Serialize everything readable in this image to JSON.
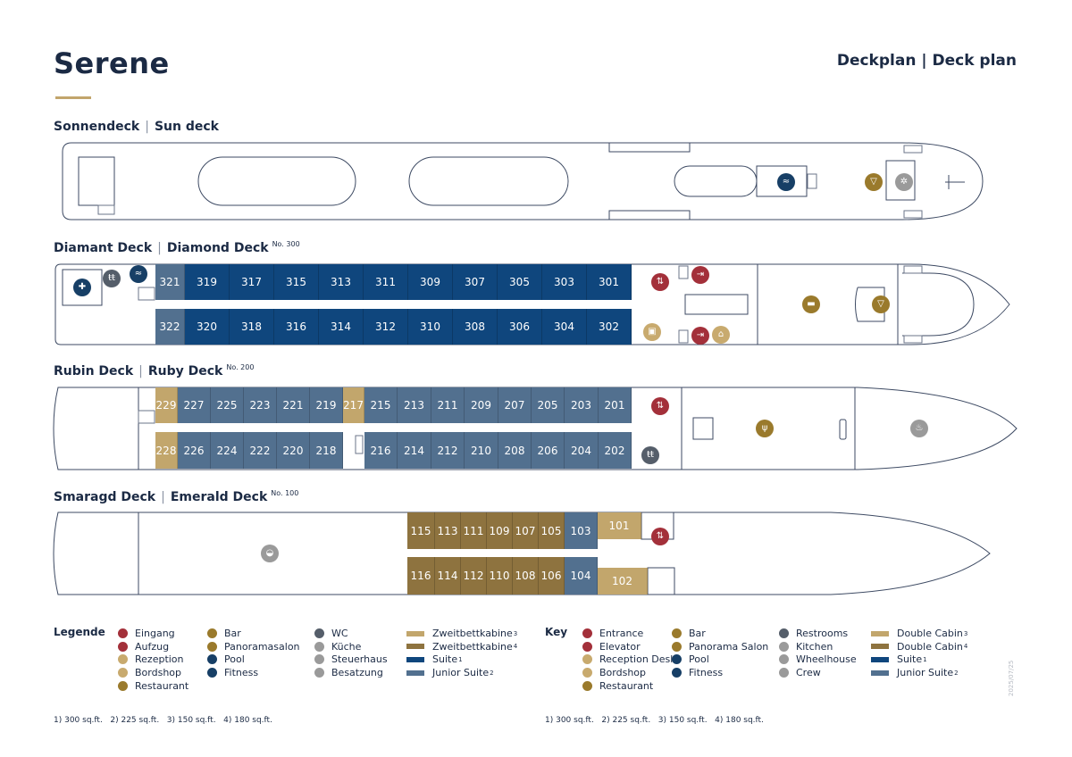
{
  "title": "Serene",
  "doc_type": "Deckplan | Deck plan",
  "colors": {
    "navy": "#1b2a44",
    "suite": "#0f467d",
    "junior_suite": "#52708f",
    "double_cabin_150": "#c2a66c",
    "double_cabin_180": "#8e733f",
    "entrance": "#a3303a",
    "gold_icon": "#9a7a2c",
    "light_gold_icon": "#c8aa6e",
    "navy_icon": "#173f66",
    "grey_icon": "#9a9a9a",
    "wc_icon": "#555e6a"
  },
  "decks": [
    {
      "id": "sun",
      "de": "Sonnendeck",
      "en": "Sun deck",
      "no": "",
      "icons": [
        "pool",
        "bar",
        "wheelhouse"
      ],
      "cabins": []
    },
    {
      "id": "diamond",
      "de": "Diamant Deck",
      "en": "Diamond Deck",
      "no": "No. 300",
      "icons": [
        "fitness",
        "restrooms",
        "pool",
        "elevator",
        "entrance",
        "entrance",
        "bordshop",
        "reception",
        "panorama-salon",
        "bar"
      ],
      "cabins": [
        {
          "n": "321",
          "t": "junior_suite"
        },
        {
          "n": "319",
          "t": "suite"
        },
        {
          "n": "317",
          "t": "suite"
        },
        {
          "n": "315",
          "t": "suite"
        },
        {
          "n": "313",
          "t": "suite"
        },
        {
          "n": "311",
          "t": "suite"
        },
        {
          "n": "309",
          "t": "suite"
        },
        {
          "n": "307",
          "t": "suite"
        },
        {
          "n": "305",
          "t": "suite"
        },
        {
          "n": "303",
          "t": "suite"
        },
        {
          "n": "301",
          "t": "suite"
        },
        {
          "n": "322",
          "t": "junior_suite"
        },
        {
          "n": "320",
          "t": "suite"
        },
        {
          "n": "318",
          "t": "suite"
        },
        {
          "n": "316",
          "t": "suite"
        },
        {
          "n": "314",
          "t": "suite"
        },
        {
          "n": "312",
          "t": "suite"
        },
        {
          "n": "310",
          "t": "suite"
        },
        {
          "n": "308",
          "t": "suite"
        },
        {
          "n": "306",
          "t": "suite"
        },
        {
          "n": "304",
          "t": "suite"
        },
        {
          "n": "302",
          "t": "suite"
        }
      ]
    },
    {
      "id": "ruby",
      "de": "Rubin Deck",
      "en": "Ruby Deck",
      "no": "No. 200",
      "icons": [
        "elevator",
        "restrooms",
        "restaurant",
        "kitchen"
      ],
      "cabins": [
        {
          "n": "229",
          "t": "double_cabin_150"
        },
        {
          "n": "227",
          "t": "junior_suite"
        },
        {
          "n": "225",
          "t": "junior_suite"
        },
        {
          "n": "223",
          "t": "junior_suite"
        },
        {
          "n": "221",
          "t": "junior_suite"
        },
        {
          "n": "219",
          "t": "junior_suite"
        },
        {
          "n": "217",
          "t": "double_cabin_150"
        },
        {
          "n": "215",
          "t": "junior_suite"
        },
        {
          "n": "213",
          "t": "junior_suite"
        },
        {
          "n": "211",
          "t": "junior_suite"
        },
        {
          "n": "209",
          "t": "junior_suite"
        },
        {
          "n": "207",
          "t": "junior_suite"
        },
        {
          "n": "205",
          "t": "junior_suite"
        },
        {
          "n": "203",
          "t": "junior_suite"
        },
        {
          "n": "201",
          "t": "junior_suite"
        },
        {
          "n": "228",
          "t": "double_cabin_150"
        },
        {
          "n": "226",
          "t": "junior_suite"
        },
        {
          "n": "224",
          "t": "junior_suite"
        },
        {
          "n": "222",
          "t": "junior_suite"
        },
        {
          "n": "220",
          "t": "junior_suite"
        },
        {
          "n": "218",
          "t": "junior_suite"
        },
        {
          "n": "216",
          "t": "junior_suite"
        },
        {
          "n": "214",
          "t": "junior_suite"
        },
        {
          "n": "212",
          "t": "junior_suite"
        },
        {
          "n": "210",
          "t": "junior_suite"
        },
        {
          "n": "208",
          "t": "junior_suite"
        },
        {
          "n": "206",
          "t": "junior_suite"
        },
        {
          "n": "204",
          "t": "junior_suite"
        },
        {
          "n": "202",
          "t": "junior_suite"
        }
      ]
    },
    {
      "id": "emerald",
      "de": "Smaragd Deck",
      "en": "Emerald Deck",
      "no": "No. 100",
      "icons": [
        "crew",
        "elevator"
      ],
      "cabins": [
        {
          "n": "115",
          "t": "double_cabin_180"
        },
        {
          "n": "113",
          "t": "double_cabin_180"
        },
        {
          "n": "111",
          "t": "double_cabin_180"
        },
        {
          "n": "109",
          "t": "double_cabin_180"
        },
        {
          "n": "107",
          "t": "double_cabin_180"
        },
        {
          "n": "105",
          "t": "double_cabin_180"
        },
        {
          "n": "103",
          "t": "junior_suite"
        },
        {
          "n": "101",
          "t": "double_cabin_150"
        },
        {
          "n": "116",
          "t": "double_cabin_180"
        },
        {
          "n": "114",
          "t": "double_cabin_180"
        },
        {
          "n": "112",
          "t": "double_cabin_180"
        },
        {
          "n": "110",
          "t": "double_cabin_180"
        },
        {
          "n": "108",
          "t": "double_cabin_180"
        },
        {
          "n": "106",
          "t": "double_cabin_180"
        },
        {
          "n": "104",
          "t": "junior_suite"
        },
        {
          "n": "102",
          "t": "double_cabin_150"
        }
      ]
    }
  ],
  "legend_de": {
    "title": "Legende",
    "items": [
      {
        "label": "Eingang",
        "icon": "entrance"
      },
      {
        "label": "Aufzug",
        "icon": "elevator"
      },
      {
        "label": "Rezeption",
        "icon": "reception"
      },
      {
        "label": "Bordshop",
        "icon": "bordshop"
      },
      {
        "label": "Restaurant",
        "icon": "restaurant"
      },
      {
        "label": "Bar",
        "icon": "bar"
      },
      {
        "label": "Panoramasalon",
        "icon": "panorama-salon"
      },
      {
        "label": "Pool",
        "icon": "pool"
      },
      {
        "label": "Fitness",
        "icon": "fitness"
      },
      {
        "label": "WC",
        "icon": "restrooms"
      },
      {
        "label": "Küche",
        "icon": "kitchen"
      },
      {
        "label": "Steuerhaus",
        "icon": "wheelhouse"
      },
      {
        "label": "Besatzung",
        "icon": "crew"
      },
      {
        "label": "Zweitbettkabine",
        "sup": "3",
        "swatch": "double_cabin_150"
      },
      {
        "label": "Zweitbettkabine",
        "sup": "4",
        "swatch": "double_cabin_180"
      },
      {
        "label": "Suite",
        "sup": "1",
        "swatch": "suite"
      },
      {
        "label": "Junior Suite",
        "sup": "2",
        "swatch": "junior_suite"
      }
    ],
    "footnote": "1) 300 sq.ft.   2) 225 sq.ft.   3) 150 sq.ft.   4) 180 sq.ft."
  },
  "legend_en": {
    "title": "Key",
    "items": [
      {
        "label": "Entrance",
        "icon": "entrance"
      },
      {
        "label": "Elevator",
        "icon": "elevator"
      },
      {
        "label": "Reception Desk",
        "icon": "reception"
      },
      {
        "label": "Bordshop",
        "icon": "bordshop"
      },
      {
        "label": "Restaurant",
        "icon": "restaurant"
      },
      {
        "label": "Bar",
        "icon": "bar"
      },
      {
        "label": "Panorama Salon",
        "icon": "panorama-salon"
      },
      {
        "label": "Pool",
        "icon": "pool"
      },
      {
        "label": "Fitness",
        "icon": "fitness"
      },
      {
        "label": "Restrooms",
        "icon": "restrooms"
      },
      {
        "label": "Kitchen",
        "icon": "kitchen"
      },
      {
        "label": "Wheelhouse",
        "icon": "wheelhouse"
      },
      {
        "label": "Crew",
        "icon": "crew"
      },
      {
        "label": "Double Cabin",
        "sup": "3",
        "swatch": "double_cabin_150"
      },
      {
        "label": "Double Cabin",
        "sup": "4",
        "swatch": "double_cabin_180"
      },
      {
        "label": "Suite",
        "sup": "1",
        "swatch": "suite"
      },
      {
        "label": "Junior Suite",
        "sup": "2",
        "swatch": "junior_suite"
      }
    ],
    "footnote": "1) 300 sq.ft.   2) 225 sq.ft.   3) 150 sq.ft.   4) 180 sq.ft."
  },
  "version": "2025/07/25"
}
